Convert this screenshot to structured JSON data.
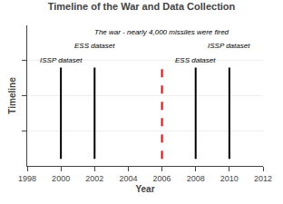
{
  "chart_data": {
    "type": "timeline",
    "title": "Timeline of the War and Data Collection",
    "xlabel": "Year",
    "ylabel": "Timeline",
    "xlim": [
      1998,
      2012
    ],
    "xticks": [
      1998,
      2000,
      2002,
      2004,
      2006,
      2008,
      2010,
      2012
    ],
    "ylim": [
      0,
      1
    ],
    "yticks": [
      0.25,
      0.5,
      0.75
    ],
    "tick_labels": "x",
    "grid": true,
    "annotations": [
      {
        "x": 2000,
        "text": "ISSP dataset",
        "color": "black",
        "line_style": "solid"
      },
      {
        "x": 2002,
        "text": "ESS dataset",
        "color": "black",
        "line_style": "solid"
      },
      {
        "x": 2008,
        "text": "ESS dataset",
        "color": "black",
        "line_style": "solid"
      },
      {
        "x": 2010,
        "text": "ISSP dataset",
        "color": "black",
        "line_style": "solid"
      },
      {
        "x": 2006,
        "text": "The war - nearly 4,000 missiles were fired",
        "color": "red",
        "line_style": "dashed"
      }
    ]
  }
}
